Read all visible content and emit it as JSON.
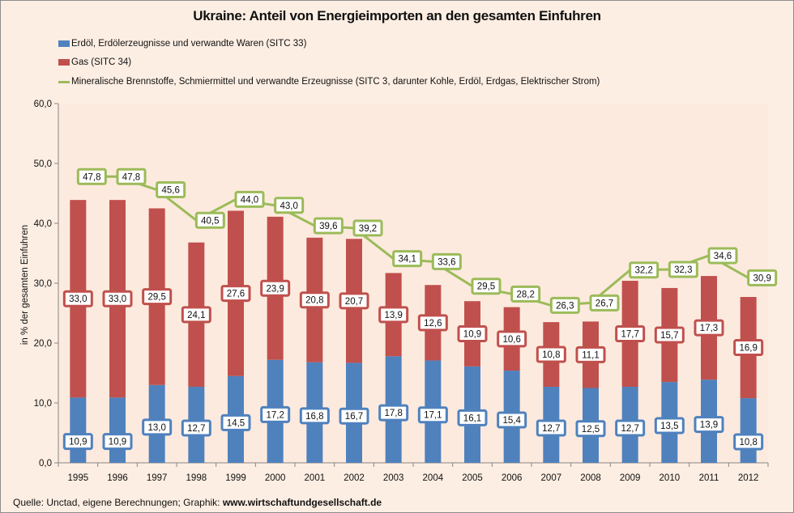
{
  "chart_data": {
    "type": "bar",
    "stacked": true,
    "title": "Ukraine: Anteil von Energieimporten an den gesamten Einfuhren",
    "xlabel": "",
    "ylabel": "in % der gesamten Einfuhren",
    "ylim": [
      0,
      60
    ],
    "yticks": [
      "0,0",
      "10,0",
      "20,0",
      "30,0",
      "40,0",
      "50,0",
      "60,0"
    ],
    "grid": false,
    "legend_position": "top",
    "categories": [
      "1995",
      "1996",
      "1997",
      "1998",
      "1999",
      "2000",
      "2001",
      "2002",
      "2003",
      "2004",
      "2005",
      "2006",
      "2007",
      "2008",
      "2009",
      "2010",
      "2011",
      "2012"
    ],
    "series": [
      {
        "name": "Erdöl, Erdölerzeugnisse und verwandte Waren (SITC 33)",
        "type": "bar",
        "color": "#4f81bd",
        "values": [
          10.9,
          10.9,
          13.0,
          12.7,
          14.5,
          17.2,
          16.8,
          16.7,
          17.8,
          17.1,
          16.1,
          15.4,
          12.7,
          12.5,
          12.7,
          13.5,
          13.9,
          10.8
        ]
      },
      {
        "name": "Gas (SITC 34)",
        "type": "bar",
        "color": "#c0504d",
        "values": [
          33.0,
          33.0,
          29.5,
          24.1,
          27.6,
          23.9,
          20.8,
          20.7,
          13.9,
          12.6,
          10.9,
          10.6,
          10.8,
          11.1,
          17.7,
          15.7,
          17.3,
          16.9
        ]
      },
      {
        "name": "Mineralische Brennstoffe, Schmiermittel und verwandte Erzeugnisse (SITC 3, darunter Kohle, Erdöl, Erdgas, Elektrischer Strom)",
        "type": "line",
        "color": "#9bbb59",
        "values": [
          47.8,
          47.8,
          45.6,
          40.5,
          44.0,
          43.0,
          39.6,
          39.2,
          34.1,
          33.6,
          29.5,
          28.2,
          26.3,
          26.7,
          32.2,
          32.3,
          34.6,
          30.9
        ]
      }
    ],
    "annotation": "Quelle: Unctad, eigene Berechnungen; Graphik: www.wirtschaftundgesellschaft.de"
  },
  "source": {
    "prefix": "Quelle: Unctad, eigene Berechnungen; Graphik: ",
    "site": "www.wirtschaftundgesellschaft.de"
  }
}
